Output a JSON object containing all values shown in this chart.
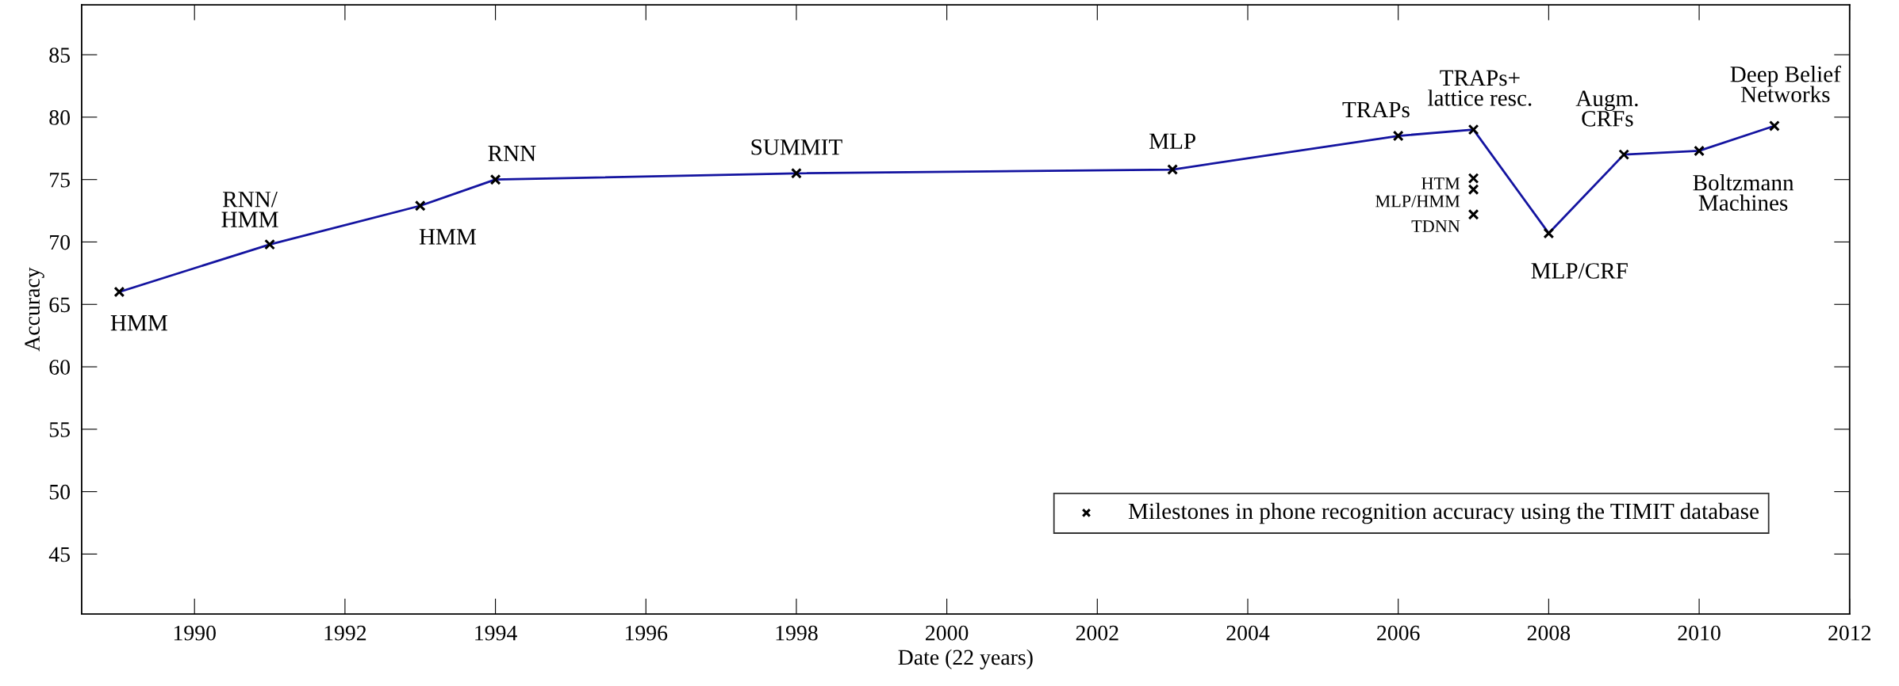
{
  "chart_data": {
    "type": "line",
    "xlabel": "Date (22 years)",
    "ylabel": "Accuracy",
    "xlim": [
      1988.5,
      2012
    ],
    "xticks": [
      1990,
      1992,
      1994,
      1996,
      1998,
      2000,
      2002,
      2004,
      2006,
      2008,
      2010,
      2012
    ],
    "ylim": [
      40.2,
      89
    ],
    "yticks": [
      45,
      50,
      55,
      60,
      65,
      70,
      75,
      80,
      85
    ],
    "grid": false,
    "legend": "bottom right",
    "series": [
      {
        "color": "#1414a0",
        "marker": "none",
        "line_style": "solid",
        "x": [
          1989,
          1991,
          1993,
          1994,
          1998,
          2003,
          2006,
          2007,
          2008,
          2009,
          2010,
          2011
        ],
        "values": [
          66.0,
          69.8,
          72.9,
          75.0,
          75.5,
          75.8,
          78.5,
          79.0,
          70.7,
          77.0,
          77.3,
          79.3
        ]
      },
      {
        "type": "scatter",
        "name": "Milestones in phone recognition accuracy using the TIMIT database",
        "color": "#000000",
        "marker": "cross",
        "x": [
          1989,
          1991,
          1993,
          1994,
          1998,
          2003,
          2006,
          2007,
          2007,
          2007,
          2007,
          2008,
          2009,
          2010,
          2011
        ],
        "values": [
          66.0,
          69.8,
          72.9,
          75.0,
          75.5,
          75.8,
          78.5,
          79.0,
          75.1,
          74.2,
          72.2,
          70.7,
          77.0,
          77.3,
          79.3
        ]
      }
    ],
    "annotations": [
      {
        "text": "HMM",
        "x": 1989,
        "y": 66.0
      },
      {
        "text": "RNN/\nHMM",
        "x": 1991,
        "y": 69.8
      },
      {
        "text": "HMM",
        "x": 1993,
        "y": 72.9
      },
      {
        "text": "RNN",
        "x": 1994,
        "y": 75.0
      },
      {
        "text": "SUMMIT",
        "x": 1998,
        "y": 75.5
      },
      {
        "text": "MLP",
        "x": 2003,
        "y": 75.8
      },
      {
        "text": "TRAPs",
        "x": 2006,
        "y": 78.5
      },
      {
        "text": "TRAPs+\nlattice resc.",
        "x": 2007,
        "y": 79.0
      },
      {
        "text": "HTM",
        "x": 2007,
        "y": 75.1
      },
      {
        "text": "MLP/HMM",
        "x": 2007,
        "y": 74.2
      },
      {
        "text": "TDNN",
        "x": 2007,
        "y": 72.2
      },
      {
        "text": "MLP/CRF",
        "x": 2008,
        "y": 70.7
      },
      {
        "text": "Augm.\nCRFs",
        "x": 2009,
        "y": 77.0
      },
      {
        "text": "Boltzmann\nMachines",
        "x": 2010,
        "y": 77.3
      },
      {
        "text": "Deep Belief\nNetworks",
        "x": 2011,
        "y": 79.3
      }
    ]
  }
}
